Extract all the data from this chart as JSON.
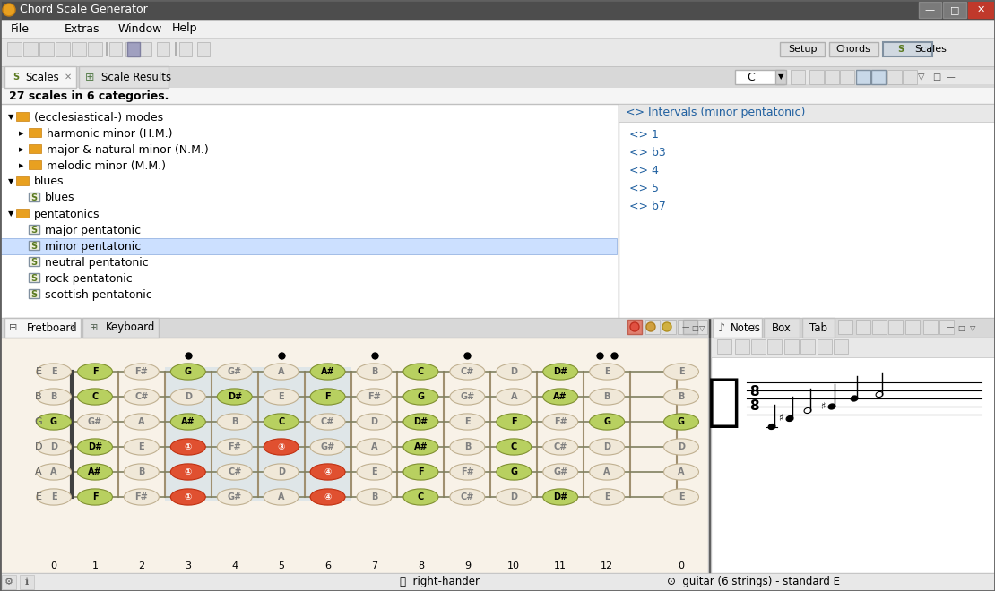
{
  "title": "Chord Scale Generator",
  "bg_titlebar": "#4a4a4a",
  "bg_menubar": "#f0f0f0",
  "bg_toolbar": "#e8e8e8",
  "bg_main": "#f5f5f5",
  "bg_white": "#ffffff",
  "bg_panel": "#f0f0f0",
  "bg_fretboard": "#e8d5b0",
  "bg_fret_highlight": "#d4e8f0",
  "menu_items": [
    "File",
    "Extras",
    "Window",
    "Help"
  ],
  "tab1": "Scales",
  "tab2": "Scale Results",
  "scale_count_text": "27 scales in 6 categories.",
  "tree_items": [
    {
      "level": 0,
      "type": "folder",
      "expanded": true,
      "text": "(ecclesiastical-) modes"
    },
    {
      "level": 1,
      "type": "folder",
      "expanded": false,
      "text": "harmonic minor (H.M.)"
    },
    {
      "level": 1,
      "type": "folder",
      "expanded": false,
      "text": "major & natural minor (N.M.)"
    },
    {
      "level": 1,
      "type": "folder",
      "expanded": false,
      "text": "melodic minor (M.M.)"
    },
    {
      "level": 0,
      "type": "folder",
      "expanded": true,
      "text": "blues"
    },
    {
      "level": 1,
      "type": "scale",
      "expanded": false,
      "text": "blues",
      "selected": false
    },
    {
      "level": 0,
      "type": "folder",
      "expanded": true,
      "text": "pentatonics"
    },
    {
      "level": 1,
      "type": "scale",
      "expanded": false,
      "text": "major pentatonic",
      "selected": false
    },
    {
      "level": 1,
      "type": "scale",
      "expanded": false,
      "text": "minor pentatonic",
      "selected": true
    },
    {
      "level": 1,
      "type": "scale",
      "expanded": false,
      "text": "neutral pentatonic",
      "selected": false
    },
    {
      "level": 1,
      "type": "scale",
      "expanded": false,
      "text": "rock pentatonic",
      "selected": false
    },
    {
      "level": 1,
      "type": "scale",
      "expanded": false,
      "text": "scottish pentatonic",
      "selected": false
    }
  ],
  "intervals_title": "<> Intervals (minor pentatonic)",
  "intervals": [
    "<> 1",
    "<> b3",
    "<> 4",
    "<> 5",
    "<> b7"
  ],
  "fretboard_tab": "Fretboard",
  "keyboard_tab": "Keyboard",
  "notes_tab": "Notes",
  "box_tab": "Box",
  "tab_tab": "Tab",
  "fret_numbers": [
    "0",
    "1",
    "2",
    "3",
    "4",
    "5",
    "6",
    "7",
    "8",
    "9",
    "10",
    "11",
    "12",
    "0"
  ],
  "strings": [
    "E",
    "B",
    "G",
    "D",
    "A",
    "E"
  ],
  "status_text1": "right-hander",
  "status_text2": "guitar (6 strings) - standard E",
  "dropdown_value": "C",
  "toolbar_right": [
    "Setup",
    "Chords",
    "Scales"
  ]
}
